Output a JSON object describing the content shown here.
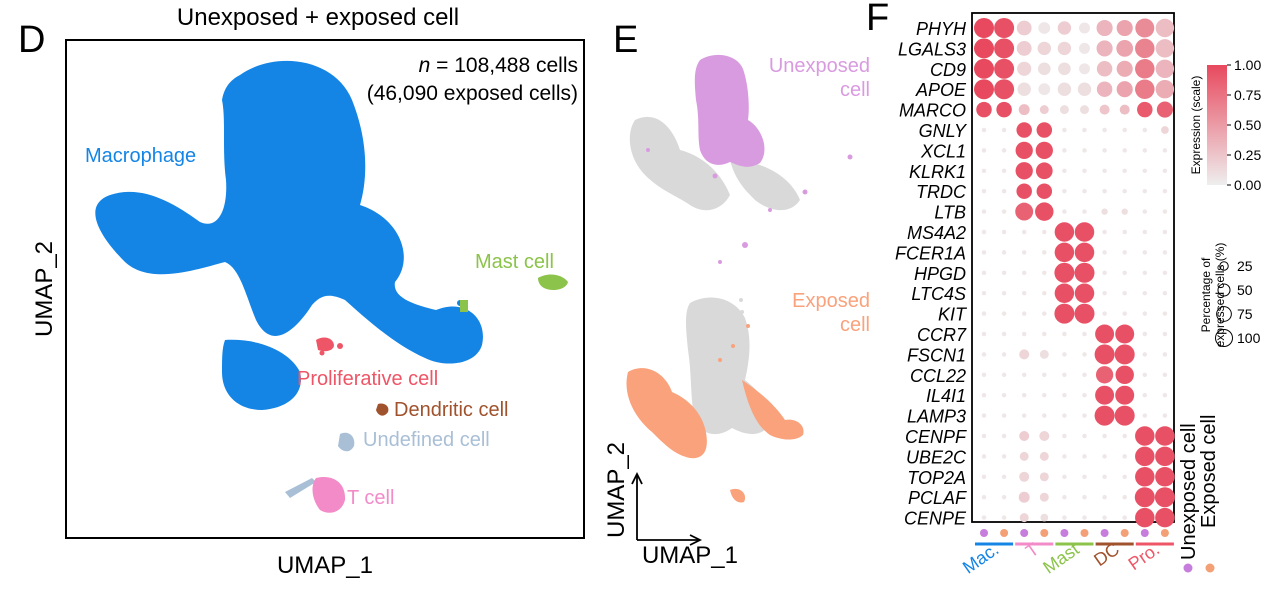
{
  "panel_d": {
    "letter": "D",
    "title": "Unexposed + exposed cell",
    "n_prefix": "n",
    "n_rest": " = 108,488 cells",
    "n_sub": "(46,090 exposed cells)",
    "xlabel": "UMAP_1",
    "ylabel": "UMAP_2",
    "clusters": [
      {
        "key": "macrophage",
        "label": "Macrophage",
        "color": "#1485e5"
      },
      {
        "key": "mast",
        "label": "Mast cell",
        "color": "#8cc34a"
      },
      {
        "key": "proliferative",
        "label": "Proliferative cell",
        "color": "#ee5566"
      },
      {
        "key": "dendritic",
        "label": "Dendritic cell",
        "color": "#a0522d"
      },
      {
        "key": "undefined",
        "label": "Undefined cell",
        "color": "#a9bfd6"
      },
      {
        "key": "tcell",
        "label": "T cell",
        "color": "#f28bc8"
      }
    ]
  },
  "panel_e": {
    "letter": "E",
    "top_label_1": "Unexposed",
    "top_label_2": "cell",
    "top_color": "#d99be0",
    "bottom_label_1": "Exposed",
    "bottom_label_2": "cell",
    "bottom_color": "#f9a27c",
    "background_color": "#d9d9d9",
    "xlabel": "UMAP_1",
    "ylabel": "UMAP_2"
  },
  "panel_f": {
    "letter": "F",
    "legend_expression_title": "Expression (scale)",
    "legend_expression_ticks": [
      "1.00",
      "0.75",
      "0.50",
      "0.25",
      "0.00"
    ],
    "legend_size_title_1": "Percentage of",
    "legend_size_title_2": "expressed cells (%)",
    "legend_size_ticks": [
      "25",
      "50",
      "75",
      "100"
    ],
    "condition_labels": [
      "Unexposed cell",
      "Exposed cell"
    ],
    "condition_colors": [
      "#c77ddb",
      "#f4a076"
    ],
    "groups": [
      {
        "label": "Mac.",
        "color": "#1485e5"
      },
      {
        "label": "T",
        "color": "#f28bc8"
      },
      {
        "label": "Mast",
        "color": "#8cc34a"
      },
      {
        "label": "DC",
        "color": "#a0522d"
      },
      {
        "label": "Pro.",
        "color": "#ee5566"
      }
    ]
  },
  "chart_data": [
    {
      "type": "scatter",
      "title": "Unexposed + exposed cell",
      "xlabel": "UMAP_1",
      "ylabel": "UMAP_2",
      "annotation": "n = 108,488 cells (46,090 exposed cells)",
      "series": [
        {
          "name": "Macrophage"
        },
        {
          "name": "Mast cell"
        },
        {
          "name": "Proliferative cell"
        },
        {
          "name": "Dendritic cell"
        },
        {
          "name": "Undefined cell"
        },
        {
          "name": "T cell"
        }
      ]
    },
    {
      "type": "scatter",
      "xlabel": "UMAP_1",
      "ylabel": "UMAP_2",
      "series": [
        {
          "name": "Unexposed cell"
        },
        {
          "name": "Exposed cell"
        }
      ]
    },
    {
      "type": "heatmap",
      "subtype": "dotplot",
      "genes": [
        "PHYH",
        "LGALS3",
        "CD9",
        "APOE",
        "MARCO",
        "GNLY",
        "XCL1",
        "KLRK1",
        "TRDC",
        "LTB",
        "MS4A2",
        "FCER1A",
        "HPGD",
        "LTC4S",
        "KIT",
        "CCR7",
        "FSCN1",
        "CCL22",
        "IL4I1",
        "LAMP3",
        "CENPF",
        "UBE2C",
        "TOP2A",
        "PCLAF",
        "CENPE"
      ],
      "columns": [
        "Mac. Unexposed",
        "Mac. Exposed",
        "T Unexposed",
        "T Exposed",
        "Mast Unexposed",
        "Mast Exposed",
        "DC Unexposed",
        "DC Exposed",
        "Pro. Unexposed",
        "Pro. Exposed"
      ],
      "expression_range": [
        0,
        1
      ],
      "percent_range": [
        0,
        100
      ],
      "expression": [
        [
          1.0,
          0.95,
          0.2,
          0.05,
          0.2,
          0.05,
          0.35,
          0.45,
          0.6,
          0.3
        ],
        [
          1.0,
          0.95,
          0.2,
          0.15,
          0.15,
          0.05,
          0.35,
          0.45,
          0.65,
          0.3
        ],
        [
          1.0,
          0.95,
          0.15,
          0.1,
          0.1,
          0.05,
          0.3,
          0.4,
          0.7,
          0.35
        ],
        [
          1.0,
          0.95,
          0.1,
          0.05,
          0.1,
          0.1,
          0.35,
          0.45,
          0.7,
          0.4
        ],
        [
          0.95,
          0.95,
          0.3,
          0.2,
          0.1,
          0.1,
          0.25,
          0.3,
          0.9,
          0.85
        ],
        [
          0.05,
          0.05,
          0.95,
          0.95,
          0.05,
          0.05,
          0.05,
          0.05,
          0.05,
          0.15
        ],
        [
          0.05,
          0.05,
          0.95,
          0.95,
          0.05,
          0.05,
          0.05,
          0.05,
          0.05,
          0.05
        ],
        [
          0.05,
          0.05,
          0.95,
          0.95,
          0.05,
          0.05,
          0.05,
          0.05,
          0.05,
          0.05
        ],
        [
          0.05,
          0.05,
          0.95,
          0.95,
          0.05,
          0.05,
          0.05,
          0.05,
          0.05,
          0.05
        ],
        [
          0.05,
          0.05,
          0.85,
          0.95,
          0.05,
          0.05,
          0.1,
          0.1,
          0.05,
          0.05
        ],
        [
          0.05,
          0.05,
          0.05,
          0.05,
          0.95,
          0.95,
          0.05,
          0.05,
          0.05,
          0.05
        ],
        [
          0.05,
          0.05,
          0.05,
          0.05,
          0.95,
          0.95,
          0.05,
          0.05,
          0.05,
          0.05
        ],
        [
          0.05,
          0.05,
          0.05,
          0.05,
          0.95,
          0.95,
          0.05,
          0.05,
          0.05,
          0.05
        ],
        [
          0.05,
          0.05,
          0.05,
          0.05,
          0.95,
          0.95,
          0.05,
          0.05,
          0.05,
          0.05
        ],
        [
          0.05,
          0.05,
          0.05,
          0.05,
          0.95,
          0.95,
          0.05,
          0.05,
          0.05,
          0.05
        ],
        [
          0.05,
          0.05,
          0.05,
          0.05,
          0.05,
          0.05,
          0.95,
          0.95,
          0.05,
          0.05
        ],
        [
          0.05,
          0.05,
          0.15,
          0.1,
          0.05,
          0.05,
          0.95,
          0.95,
          0.05,
          0.05
        ],
        [
          0.05,
          0.05,
          0.05,
          0.05,
          0.05,
          0.05,
          0.85,
          0.95,
          0.05,
          0.05
        ],
        [
          0.05,
          0.05,
          0.05,
          0.05,
          0.05,
          0.05,
          0.95,
          0.95,
          0.05,
          0.05
        ],
        [
          0.05,
          0.05,
          0.05,
          0.05,
          0.05,
          0.05,
          0.95,
          0.95,
          0.05,
          0.05
        ],
        [
          0.05,
          0.05,
          0.2,
          0.15,
          0.05,
          0.05,
          0.05,
          0.05,
          0.95,
          0.95
        ],
        [
          0.05,
          0.05,
          0.15,
          0.15,
          0.05,
          0.05,
          0.05,
          0.05,
          0.95,
          0.95
        ],
        [
          0.05,
          0.05,
          0.15,
          0.15,
          0.05,
          0.05,
          0.05,
          0.05,
          0.95,
          0.95
        ],
        [
          0.05,
          0.05,
          0.2,
          0.15,
          0.05,
          0.05,
          0.05,
          0.05,
          0.95,
          0.95
        ],
        [
          0.05,
          0.05,
          0.15,
          0.1,
          0.05,
          0.05,
          0.05,
          0.05,
          0.95,
          0.95
        ]
      ],
      "percent": [
        [
          100,
          100,
          55,
          35,
          45,
          30,
          65,
          65,
          90,
          85
        ],
        [
          100,
          100,
          55,
          45,
          45,
          30,
          65,
          70,
          95,
          85
        ],
        [
          100,
          100,
          50,
          40,
          40,
          30,
          60,
          65,
          95,
          85
        ],
        [
          100,
          100,
          45,
          35,
          45,
          45,
          60,
          65,
          95,
          85
        ],
        [
          60,
          60,
          30,
          20,
          20,
          20,
          25,
          25,
          60,
          65
        ],
        [
          5,
          5,
          60,
          60,
          5,
          5,
          5,
          5,
          5,
          15
        ],
        [
          5,
          5,
          75,
          75,
          5,
          5,
          5,
          5,
          5,
          5
        ],
        [
          5,
          5,
          75,
          70,
          5,
          5,
          5,
          5,
          5,
          5
        ],
        [
          5,
          5,
          60,
          60,
          5,
          5,
          5,
          5,
          5,
          5
        ],
        [
          5,
          5,
          80,
          85,
          5,
          5,
          10,
          10,
          5,
          5
        ],
        [
          5,
          5,
          5,
          5,
          95,
          95,
          5,
          5,
          5,
          5
        ],
        [
          5,
          5,
          5,
          5,
          95,
          95,
          5,
          5,
          5,
          5
        ],
        [
          5,
          5,
          5,
          5,
          100,
          100,
          5,
          5,
          5,
          5
        ],
        [
          5,
          5,
          5,
          5,
          95,
          95,
          5,
          5,
          5,
          5
        ],
        [
          5,
          5,
          5,
          5,
          100,
          100,
          5,
          5,
          5,
          5
        ],
        [
          5,
          5,
          5,
          5,
          5,
          5,
          90,
          90,
          5,
          5
        ],
        [
          5,
          5,
          25,
          20,
          5,
          5,
          100,
          100,
          5,
          5
        ],
        [
          5,
          5,
          5,
          5,
          5,
          5,
          75,
          85,
          5,
          5
        ],
        [
          5,
          5,
          5,
          5,
          5,
          5,
          90,
          90,
          5,
          5
        ],
        [
          5,
          5,
          5,
          5,
          5,
          5,
          100,
          100,
          5,
          5
        ],
        [
          5,
          5,
          25,
          25,
          5,
          5,
          5,
          5,
          95,
          95
        ],
        [
          5,
          5,
          20,
          20,
          5,
          5,
          5,
          5,
          95,
          95
        ],
        [
          5,
          5,
          25,
          20,
          5,
          5,
          5,
          5,
          95,
          95
        ],
        [
          5,
          5,
          30,
          20,
          5,
          5,
          5,
          5,
          100,
          100
        ],
        [
          5,
          5,
          20,
          15,
          5,
          5,
          5,
          5,
          95,
          95
        ]
      ]
    }
  ]
}
